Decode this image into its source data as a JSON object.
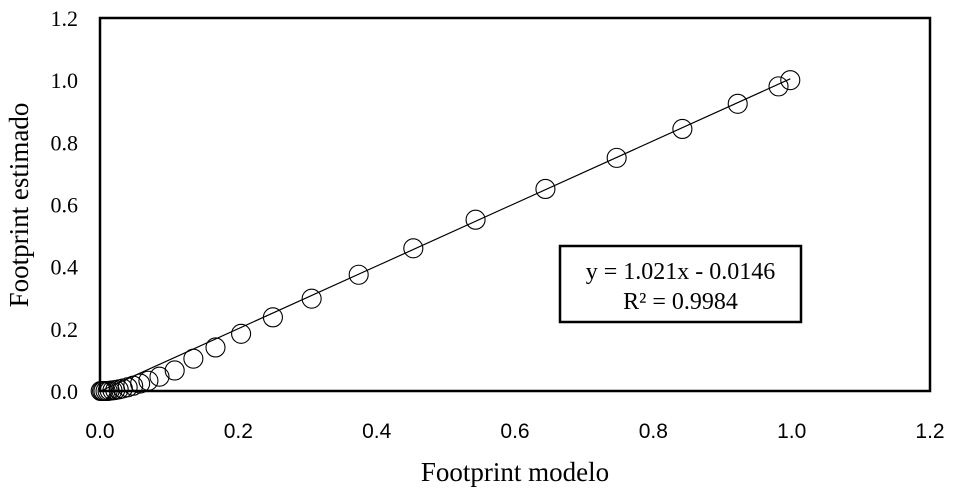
{
  "chart_data": {
    "type": "scatter",
    "xlabel": "Footprint modelo",
    "ylabel": "Footprint estimado",
    "xlim": [
      0,
      1.2
    ],
    "ylim": [
      0,
      1.2
    ],
    "x_ticks": [
      "0.0",
      "0.2",
      "0.4",
      "0.6",
      "0.8",
      "1.0",
      "1.2"
    ],
    "y_ticks": [
      "0.0",
      "0.2",
      "0.4",
      "0.6",
      "0.8",
      "1.0",
      "1.2"
    ],
    "grid": false,
    "marker": "open-circle",
    "trendline": {
      "type": "linear",
      "slope": 1.021,
      "intercept": -0.0146,
      "equation": "y = 1.021x - 0.0146",
      "r_squared": "R² = 0.9984"
    },
    "series": [
      {
        "points": [
          {
            "x": 0.001,
            "y": 0.0
          },
          {
            "x": 0.003,
            "y": 0.0
          },
          {
            "x": 0.005,
            "y": 0.0
          },
          {
            "x": 0.008,
            "y": 0.0
          },
          {
            "x": 0.011,
            "y": 0.0
          },
          {
            "x": 0.014,
            "y": 0.001
          },
          {
            "x": 0.018,
            "y": 0.002
          },
          {
            "x": 0.022,
            "y": 0.003
          },
          {
            "x": 0.027,
            "y": 0.005
          },
          {
            "x": 0.033,
            "y": 0.008
          },
          {
            "x": 0.04,
            "y": 0.012
          },
          {
            "x": 0.048,
            "y": 0.017
          },
          {
            "x": 0.058,
            "y": 0.024
          },
          {
            "x": 0.07,
            "y": 0.033
          },
          {
            "x": 0.086,
            "y": 0.046
          },
          {
            "x": 0.108,
            "y": 0.066
          },
          {
            "x": 0.135,
            "y": 0.104
          },
          {
            "x": 0.167,
            "y": 0.14
          },
          {
            "x": 0.204,
            "y": 0.184
          },
          {
            "x": 0.25,
            "y": 0.237
          },
          {
            "x": 0.306,
            "y": 0.297
          },
          {
            "x": 0.374,
            "y": 0.374
          },
          {
            "x": 0.453,
            "y": 0.459
          },
          {
            "x": 0.543,
            "y": 0.551
          },
          {
            "x": 0.644,
            "y": 0.65
          },
          {
            "x": 0.747,
            "y": 0.75
          },
          {
            "x": 0.842,
            "y": 0.843
          },
          {
            "x": 0.922,
            "y": 0.924
          },
          {
            "x": 0.981,
            "y": 0.98
          },
          {
            "x": 0.998,
            "y": 1.0
          }
        ]
      }
    ]
  }
}
